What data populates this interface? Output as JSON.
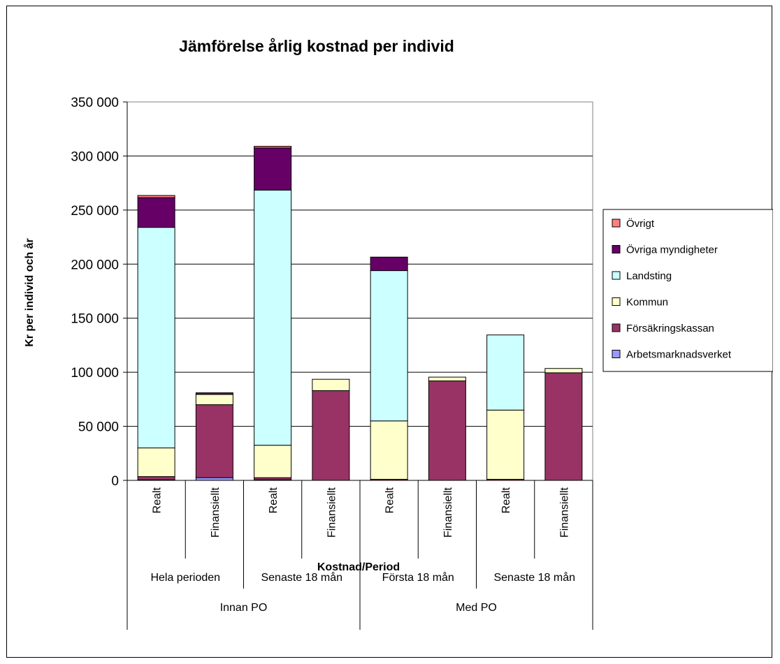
{
  "chart_data": {
    "type": "bar",
    "stacked": true,
    "title": "Jämförelse årlig kostnad per individ",
    "xlabel": "Kostnad/Period",
    "ylabel": "Kr per individ och år",
    "ylim": [
      0,
      350000
    ],
    "ytick_step": 50000,
    "ytick_labels": [
      "0",
      "50 000",
      "100 000",
      "150 000",
      "200 000",
      "250 000",
      "300 000",
      "350 000"
    ],
    "grid": true,
    "legend_position": "right",
    "categories": [
      "Realt",
      "Finansiellt",
      "Realt",
      "Finansiellt",
      "Realt",
      "Finansiellt",
      "Realt",
      "Finansiellt"
    ],
    "periods": [
      {
        "label": "Hela perioden",
        "span": 2
      },
      {
        "label": "Senaste 18 mån",
        "span": 2
      },
      {
        "label": "Första 18 mån",
        "span": 2
      },
      {
        "label": "Senaste 18 mån",
        "span": 2
      }
    ],
    "groups": [
      {
        "label": "Innan PO",
        "span": 4
      },
      {
        "label": "Med PO",
        "span": 4
      }
    ],
    "series": [
      {
        "name": "Arbetsmarknadsverket",
        "color": "#9999ff",
        "values": [
          500,
          2500,
          500,
          0,
          0,
          0,
          0,
          0
        ]
      },
      {
        "name": "Försäkringskassan",
        "color": "#993366",
        "values": [
          3000,
          67500,
          2000,
          83000,
          1000,
          92000,
          1000,
          99500
        ]
      },
      {
        "name": "Kommun",
        "color": "#ffffcc",
        "values": [
          26500,
          9500,
          30000,
          10500,
          54000,
          3500,
          64000,
          4000
        ]
      },
      {
        "name": "Landsting",
        "color": "#ccffff",
        "values": [
          204000,
          0,
          236000,
          0,
          139000,
          0,
          69500,
          0
        ]
      },
      {
        "name": "Övriga myndigheter",
        "color": "#660066",
        "values": [
          27500,
          1500,
          39000,
          0,
          12500,
          0,
          0,
          0
        ]
      },
      {
        "name": "Övrigt",
        "color": "#ff8080",
        "values": [
          2000,
          0,
          1500,
          0,
          0,
          0,
          0,
          0
        ]
      }
    ]
  }
}
